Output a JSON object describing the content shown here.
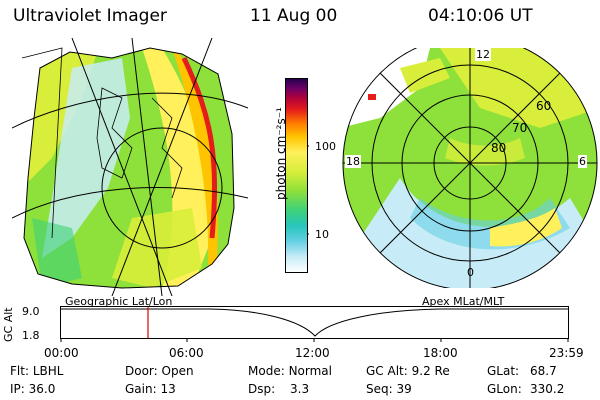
{
  "header": {
    "title": "Ultraviolet Imager",
    "date": "11 Aug 00",
    "time": "04:10:06 UT"
  },
  "colorbar": {
    "unit_label": "photon cm⁻²s⁻¹",
    "tick_labels": [
      "100",
      "10"
    ],
    "scale": "log",
    "colors": [
      "#ffffff",
      "#c8ecf7",
      "#66d0e4",
      "#28c6bc",
      "#3dd17a",
      "#8ee03a",
      "#d8ee3a",
      "#fff05c",
      "#ffc400",
      "#ff7a00",
      "#e51c1c",
      "#b0003a",
      "#6b0066",
      "#24004a"
    ]
  },
  "maps": {
    "left_label": "Geographic Lat/Lon",
    "right_label": "Apex MLat/MLT",
    "polar_lat_labels": [
      "60",
      "70",
      "80"
    ],
    "polar_mlt_labels": [
      "12",
      "18",
      "6",
      "0"
    ]
  },
  "altitude_strip": {
    "ylabel": "GC Alt",
    "y_ticks": [
      "9.0",
      "1.8"
    ],
    "x_ticks": [
      "00:00",
      "06:00",
      "12:00",
      "18:00",
      "23:59"
    ],
    "marker_color": "#e00000"
  },
  "status": {
    "flt_label": "Flt:",
    "flt_value": "LBHL",
    "ip_label": "IP:",
    "ip_value": "36.0",
    "door_label": "Door:",
    "door_value": "Open",
    "gain_label": "Gain:",
    "gain_value": "13",
    "mode_label": "Mode:",
    "mode_value": "Normal",
    "dsp_label": "Dsp:",
    "dsp_value": "3.3",
    "gcalt_label": "GC Alt:",
    "gcalt_value": "9.2 Re",
    "seq_label": "Seq:",
    "seq_value": "39",
    "glat_label": "GLat:",
    "glat_value": "68.7",
    "glon_label": "GLon:",
    "glon_value": "330.2"
  }
}
